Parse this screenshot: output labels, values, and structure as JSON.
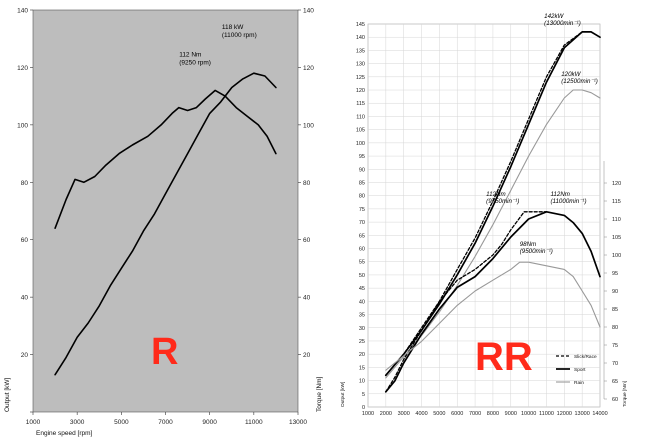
{
  "chart_data": [
    {
      "type": "line",
      "label": "R",
      "xlabel": "Engine speed [rpm]",
      "ylabel_left": "Output [kW]",
      "ylabel_right": "Torque [Nm]",
      "xlim": [
        1000,
        13000
      ],
      "ylim": [
        0,
        140
      ],
      "y2lim": [
        0,
        140
      ],
      "xticks": [
        1000,
        3000,
        5000,
        7000,
        9000,
        11000,
        13000
      ],
      "yticks": [
        0,
        20,
        40,
        60,
        80,
        100,
        120,
        140
      ],
      "y2ticks": [
        20,
        40,
        60,
        80,
        100,
        120,
        140
      ],
      "grid": false,
      "background": "#bdbdbd",
      "series": [
        {
          "role": "torque",
          "color": "#000000",
          "x": [
            2000,
            2500,
            2900,
            3300,
            3800,
            4300,
            4900,
            5500,
            6200,
            6800,
            7300,
            7600,
            8000,
            8400,
            8800,
            9250,
            9700,
            10200,
            10700,
            11200,
            11600,
            12000
          ],
          "y": [
            64,
            74,
            81,
            80,
            82,
            86,
            90,
            93,
            96,
            100,
            104,
            106,
            105,
            106,
            109,
            112,
            110,
            106,
            103,
            100,
            96,
            90
          ]
        },
        {
          "role": "output",
          "color": "#000000",
          "x": [
            2000,
            2500,
            3000,
            3500,
            4000,
            4500,
            5000,
            5500,
            6000,
            6500,
            7000,
            7500,
            8000,
            8500,
            9000,
            9500,
            10000,
            10500,
            11000,
            11500,
            12000
          ],
          "y": [
            13,
            19,
            26,
            31,
            37,
            44,
            50,
            56,
            63,
            69,
            76,
            83,
            90,
            97,
            104,
            108,
            113,
            116,
            118,
            117,
            113
          ]
        }
      ],
      "annotations": [
        {
          "text": "112 Nm",
          "at": [
            9250,
            112
          ]
        },
        {
          "text": "(9250 rpm)",
          "at": [
            9250,
            112
          ]
        },
        {
          "text": "118 kW",
          "at": [
            11000,
            118
          ]
        },
        {
          "text": "(11000 rpm)",
          "at": [
            11000,
            118
          ]
        }
      ],
      "badge": {
        "text": "R",
        "color": "#ff2a1a"
      }
    },
    {
      "type": "line",
      "label": "RR",
      "xlabel": "",
      "ylabel_left": "Output [kW]",
      "ylabel_right": "Torque [Nm]",
      "xlim": [
        1000,
        14000
      ],
      "ylim": [
        0,
        145
      ],
      "y2lim": [
        60,
        125
      ],
      "xticks": [
        1000,
        2000,
        3000,
        4000,
        5000,
        6000,
        7000,
        8000,
        9000,
        10000,
        11000,
        12000,
        13000,
        14000
      ],
      "yticks": [
        0,
        5,
        10,
        15,
        20,
        25,
        30,
        35,
        40,
        45,
        50,
        55,
        60,
        65,
        70,
        75,
        80,
        85,
        90,
        95,
        100,
        105,
        110,
        115,
        120,
        125,
        130,
        135,
        140,
        145
      ],
      "y2ticks": [
        60,
        65,
        70,
        75,
        80,
        85,
        90,
        95,
        100,
        105,
        110,
        115,
        120
      ],
      "grid": true,
      "background": "#ffffff",
      "legend": {
        "position": "bottom-right",
        "entries": [
          {
            "name": "Slick/Race",
            "style": "dashed",
            "color": "#000000"
          },
          {
            "name": "Sport",
            "style": "solid-bold",
            "color": "#000000"
          },
          {
            "name": "Rain",
            "style": "solid",
            "color": "#999999"
          }
        ]
      },
      "series": [
        {
          "role": "output",
          "mode": "Slick/Race",
          "color": "#000000",
          "style": "dashed",
          "x": [
            2000,
            3000,
            4000,
            5000,
            6000,
            7000,
            8000,
            9000,
            10000,
            11000,
            12000,
            13000
          ],
          "y": [
            12,
            20,
            30,
            40,
            52,
            64,
            78,
            93,
            109,
            125,
            137,
            142
          ]
        },
        {
          "role": "output",
          "mode": "Sport",
          "color": "#000000",
          "style": "solid",
          "x": [
            2000,
            3000,
            4000,
            5000,
            6000,
            7000,
            8000,
            9000,
            10000,
            11000,
            12000,
            13000,
            13500,
            14000
          ],
          "y": [
            12,
            20,
            29,
            39,
            50,
            62,
            76,
            91,
            107,
            123,
            136,
            142,
            142,
            140
          ]
        },
        {
          "role": "output",
          "mode": "Rain",
          "color": "#999999",
          "style": "solid",
          "x": [
            2000,
            3000,
            4000,
            5000,
            6000,
            7000,
            8000,
            9000,
            10000,
            11000,
            12000,
            12500,
            13000,
            13500,
            14000
          ],
          "y": [
            11,
            19,
            27,
            36,
            46,
            57,
            69,
            82,
            95,
            107,
            117,
            120,
            120,
            119,
            117
          ]
        },
        {
          "role": "torque",
          "mode": "Slick/Race",
          "color": "#000000",
          "style": "dashed",
          "x": [
            2000,
            2500,
            3000,
            4000,
            5000,
            6000,
            7000,
            8000,
            8500,
            9000,
            9750,
            10500,
            11000
          ],
          "y": [
            62,
            66,
            71,
            79,
            87,
            93,
            96,
            100,
            103,
            107,
            112,
            112,
            112
          ]
        },
        {
          "role": "torque",
          "mode": "Sport",
          "color": "#000000",
          "style": "solid",
          "x": [
            2000,
            2500,
            3000,
            4000,
            5000,
            6000,
            7000,
            8000,
            9000,
            10000,
            11000,
            12000,
            12500,
            13000,
            13500,
            14000
          ],
          "y": [
            62,
            65,
            70,
            78,
            85,
            91,
            94,
            99,
            105,
            110,
            112,
            111,
            109,
            106,
            101,
            94
          ]
        },
        {
          "role": "torque",
          "mode": "Rain",
          "color": "#999999",
          "style": "solid",
          "x": [
            2000,
            3000,
            4000,
            5000,
            6000,
            7000,
            8000,
            9000,
            9500,
            10000,
            11000,
            12000,
            12500,
            13000,
            13500,
            14000
          ],
          "y": [
            68,
            72,
            76,
            81,
            86,
            90,
            93,
            96,
            98,
            98,
            97,
            96,
            94,
            90,
            86,
            80
          ]
        }
      ],
      "annotations": [
        {
          "line1": "142kW",
          "line2": "(13000min⁻¹)"
        },
        {
          "line1": "120kW",
          "line2": "(12500min⁻¹)"
        },
        {
          "line1": "112Nm",
          "line2": "(9750min⁻¹)"
        },
        {
          "line1": "112Nm",
          "line2": "(11000min⁻¹)"
        },
        {
          "line1": "98Nm",
          "line2": "(9500min⁻¹)"
        }
      ],
      "badge": {
        "text": "RR",
        "color": "#ff2a1a"
      }
    }
  ]
}
